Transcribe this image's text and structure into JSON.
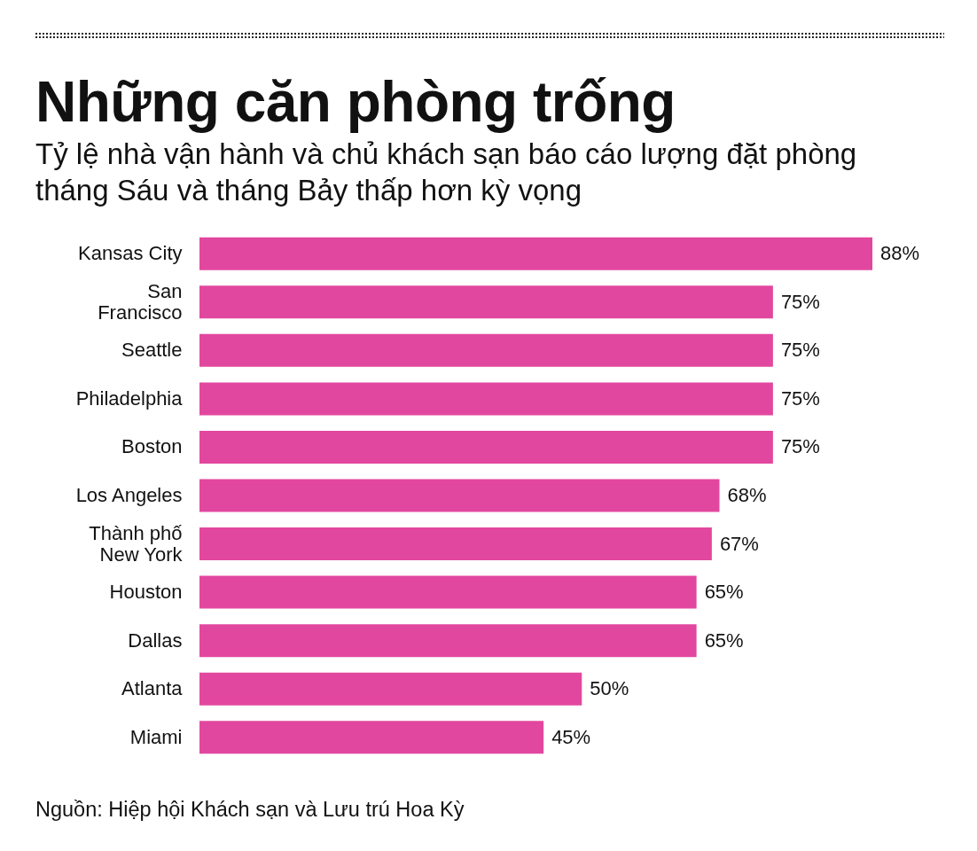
{
  "chart_data": {
    "type": "bar",
    "orientation": "horizontal",
    "title": "Những căn phòng trống",
    "subtitle": "Tỷ lệ nhà vận hành và chủ khách sạn báo cáo lượng đặt phòng tháng Sáu và tháng Bảy thấp hơn kỳ vọng",
    "categories": [
      "Kansas City",
      "San Francisco",
      "Seattle",
      "Philadelphia",
      "Boston",
      "Los Angeles",
      "Thành phố New York",
      "Houston",
      "Dallas",
      "Atlanta",
      "Miami"
    ],
    "values": [
      88,
      75,
      75,
      75,
      75,
      68,
      67,
      65,
      65,
      50,
      45
    ],
    "value_labels": [
      "88%",
      "75%",
      "75%",
      "75%",
      "75%",
      "68%",
      "67%",
      "65%",
      "65%",
      "50%",
      "45%"
    ],
    "color": "#e2479f",
    "tick_labels": "y",
    "annotations": [
      "Nguồn: Hiệp hội Khách sạn và Lưu trú Hoa Kỳ"
    ]
  }
}
